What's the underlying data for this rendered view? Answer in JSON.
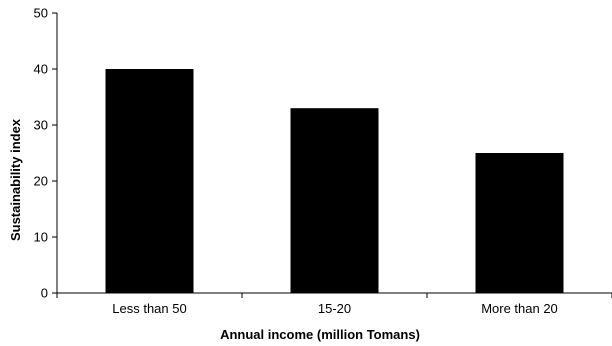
{
  "chart_data": {
    "type": "bar",
    "categories": [
      "Less than 50",
      "15-20",
      "More than 20"
    ],
    "values": [
      40,
      33,
      25
    ],
    "title": "",
    "xlabel": "Annual income (million  Tomans)",
    "ylabel": "Sustainability index",
    "ylim": [
      0,
      50
    ],
    "yticks": [
      0,
      10,
      20,
      30,
      40,
      50
    ],
    "grid": false,
    "legend": "none",
    "bar_color": "#000000",
    "axis_color": "#000000"
  }
}
